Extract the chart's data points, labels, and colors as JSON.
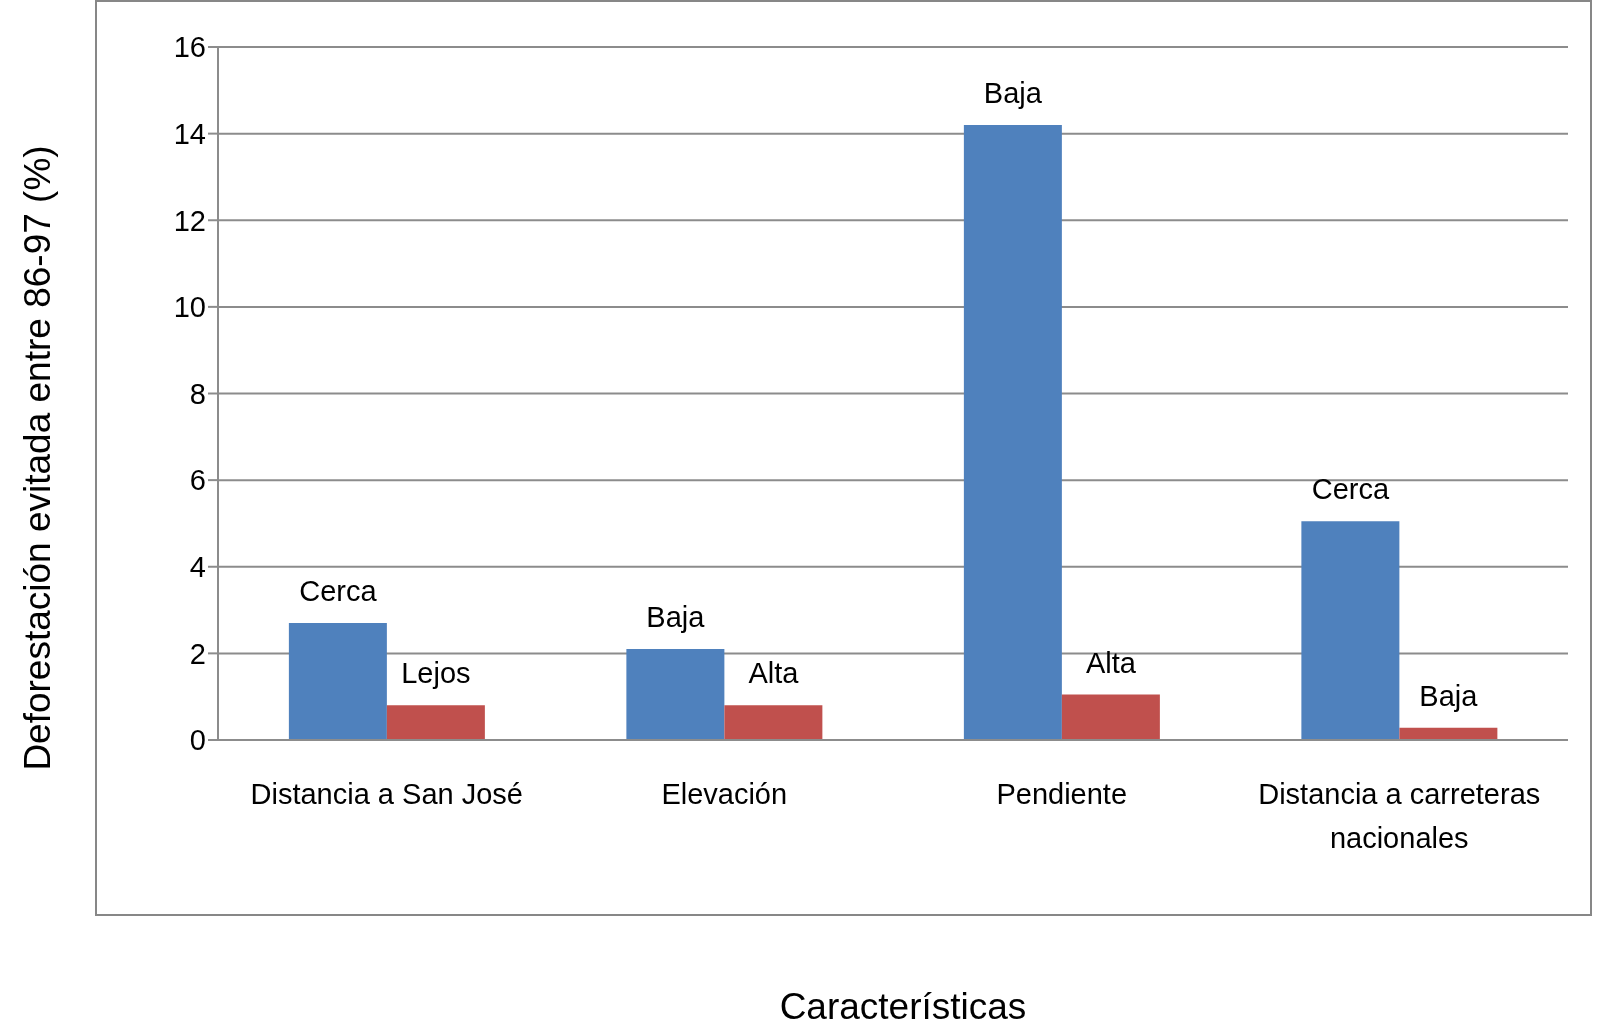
{
  "chart_data": {
    "type": "bar",
    "xlabel": "Características",
    "ylabel": "Deforestación evitada entre 86-97 (%)",
    "categories": [
      "Distancia a San José",
      "Elevación",
      "Pendiente",
      "Distancia a carreteras nacionales"
    ],
    "series": [
      {
        "color": "#4f81bd",
        "values": [
          2.7,
          2.1,
          14.2,
          5.05
        ],
        "value_labels": [
          "Cerca",
          "Baja",
          "Baja",
          "Cerca"
        ]
      },
      {
        "color": "#c0504d",
        "values": [
          0.8,
          0.8,
          1.05,
          0.28
        ],
        "value_labels": [
          "Lejos",
          "Alta",
          "Alta",
          "Baja"
        ]
      }
    ],
    "ylim": [
      0,
      16
    ],
    "yticks": [
      0,
      2,
      4,
      6,
      8,
      10,
      12,
      14,
      16
    ],
    "grid": "y",
    "legend": false
  }
}
